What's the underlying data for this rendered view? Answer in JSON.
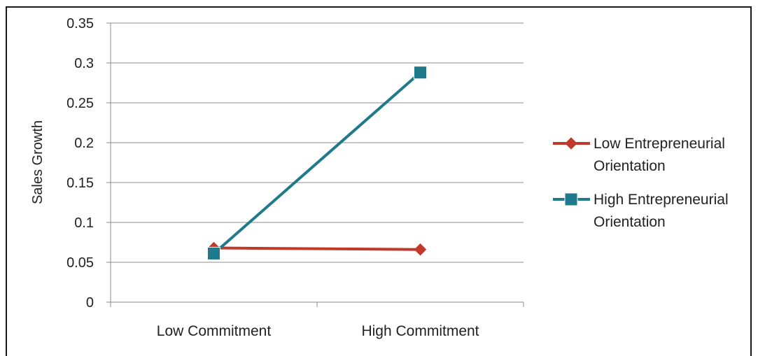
{
  "chart_data": {
    "type": "line",
    "categories": [
      "Low Commitment",
      "High Commitment"
    ],
    "series": [
      {
        "name_lines": [
          "Low Entrepreneurial",
          "Orientation"
        ],
        "values": [
          0.068,
          0.066
        ],
        "color": "#c0392b",
        "marker": "diamond"
      },
      {
        "name_lines": [
          "High Entrepreneurial",
          "Orientation"
        ],
        "values": [
          0.061,
          0.288
        ],
        "color": "#1f7a8c",
        "marker": "square"
      }
    ],
    "ylabel": "Sales Growth",
    "ylim": [
      0,
      0.35
    ],
    "yticks": [
      "0",
      "0.05",
      "0.1",
      "0.15",
      "0.2",
      "0.25",
      "0.3",
      "0.35"
    ],
    "grid": true,
    "legend": "right"
  }
}
